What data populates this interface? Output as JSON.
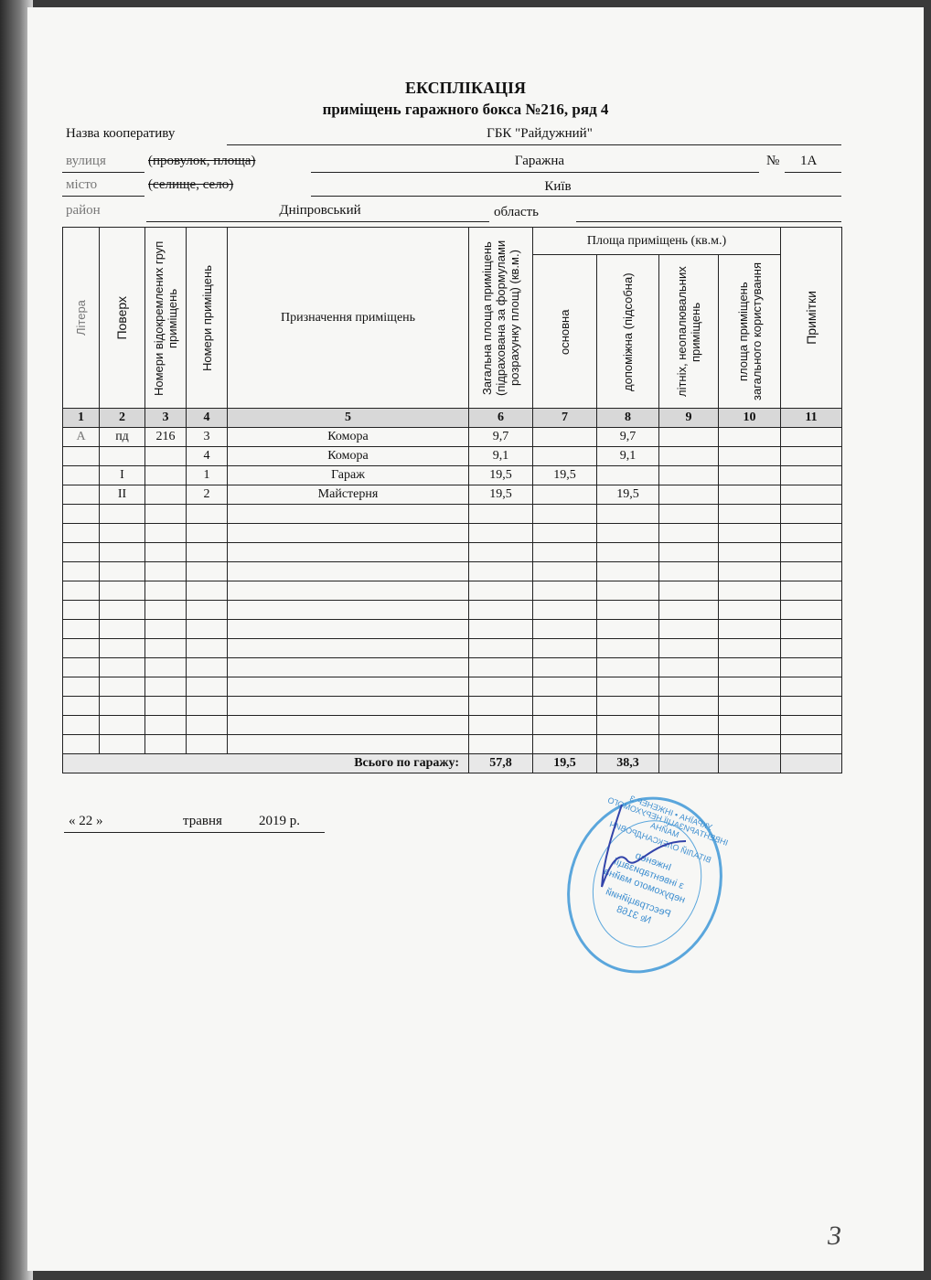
{
  "document": {
    "title": "ЕКСПЛІКАЦІЯ",
    "subtitle": "приміщень гаражного бокса №216, ряд 4",
    "fields": {
      "coop_label": "Назва кооперативу",
      "coop_value": "ГБК \"Райдужний\"",
      "street_label": "вулиця",
      "street_alt": "(провулок, площа)",
      "street_value": "Гаражна",
      "number_label": "№",
      "number_value": "1А",
      "city_label": "місто",
      "city_alt": "(селище, село)",
      "city_value": "Київ",
      "district_label": "район",
      "district_value": "Дніпровський",
      "region_label": "область",
      "region_value": ""
    },
    "table": {
      "headers": {
        "c1": "Літера",
        "c2": "Поверх",
        "c3": "Номери відокремлених груп приміщень",
        "c4": "Номери приміщень",
        "c5": "Призначення приміщень",
        "c6": "Загальна площа приміщень (підрахована за формулами розрахунку площ) (кв.м.)",
        "group": "Площа приміщень (кв.м.)",
        "c7": "основна",
        "c8": "допоміжна (підсобна)",
        "c9": "літніх, неопалювальних приміщень",
        "c10": "площа приміщень загального користування",
        "c11": "Примітки"
      },
      "column_numbers": [
        "1",
        "2",
        "3",
        "4",
        "5",
        "6",
        "7",
        "8",
        "9",
        "10",
        "11"
      ],
      "rows": [
        [
          "А",
          "пд",
          "216",
          "3",
          "Комора",
          "9,7",
          "",
          "9,7",
          "",
          "",
          ""
        ],
        [
          "",
          "",
          "",
          "4",
          "Комора",
          "9,1",
          "",
          "9,1",
          "",
          "",
          ""
        ],
        [
          "",
          "І",
          "",
          "1",
          "Гараж",
          "19,5",
          "19,5",
          "",
          "",
          "",
          ""
        ],
        [
          "",
          "ІІ",
          "",
          "2",
          "Майстерня",
          "19,5",
          "",
          "19,5",
          "",
          "",
          ""
        ]
      ],
      "empty_rows": 13,
      "total": {
        "label": "Всього по гаражу:",
        "c6": "57,8",
        "c7": "19,5",
        "c8": "38,3"
      }
    },
    "date": {
      "day": "« 22 »",
      "month": "травня",
      "year": "2019 р."
    },
    "stamp": {
      "outer": "УКРАЇНА • ІНЖЕНЕР З ІНВЕНТАРИЗАЦІЇ НЕРУХОМОГО МАЙНА",
      "name": "ВІТАЛІЙ ОЛЕКСАНДРОВИЧ",
      "line1": "Інженер",
      "line2": "з інвентаризації",
      "line3": "нерухомого майна",
      "line4": "Реєстраційний",
      "line5": "№ 3168",
      "color": "#4a9ad8"
    },
    "page_number": "3"
  }
}
